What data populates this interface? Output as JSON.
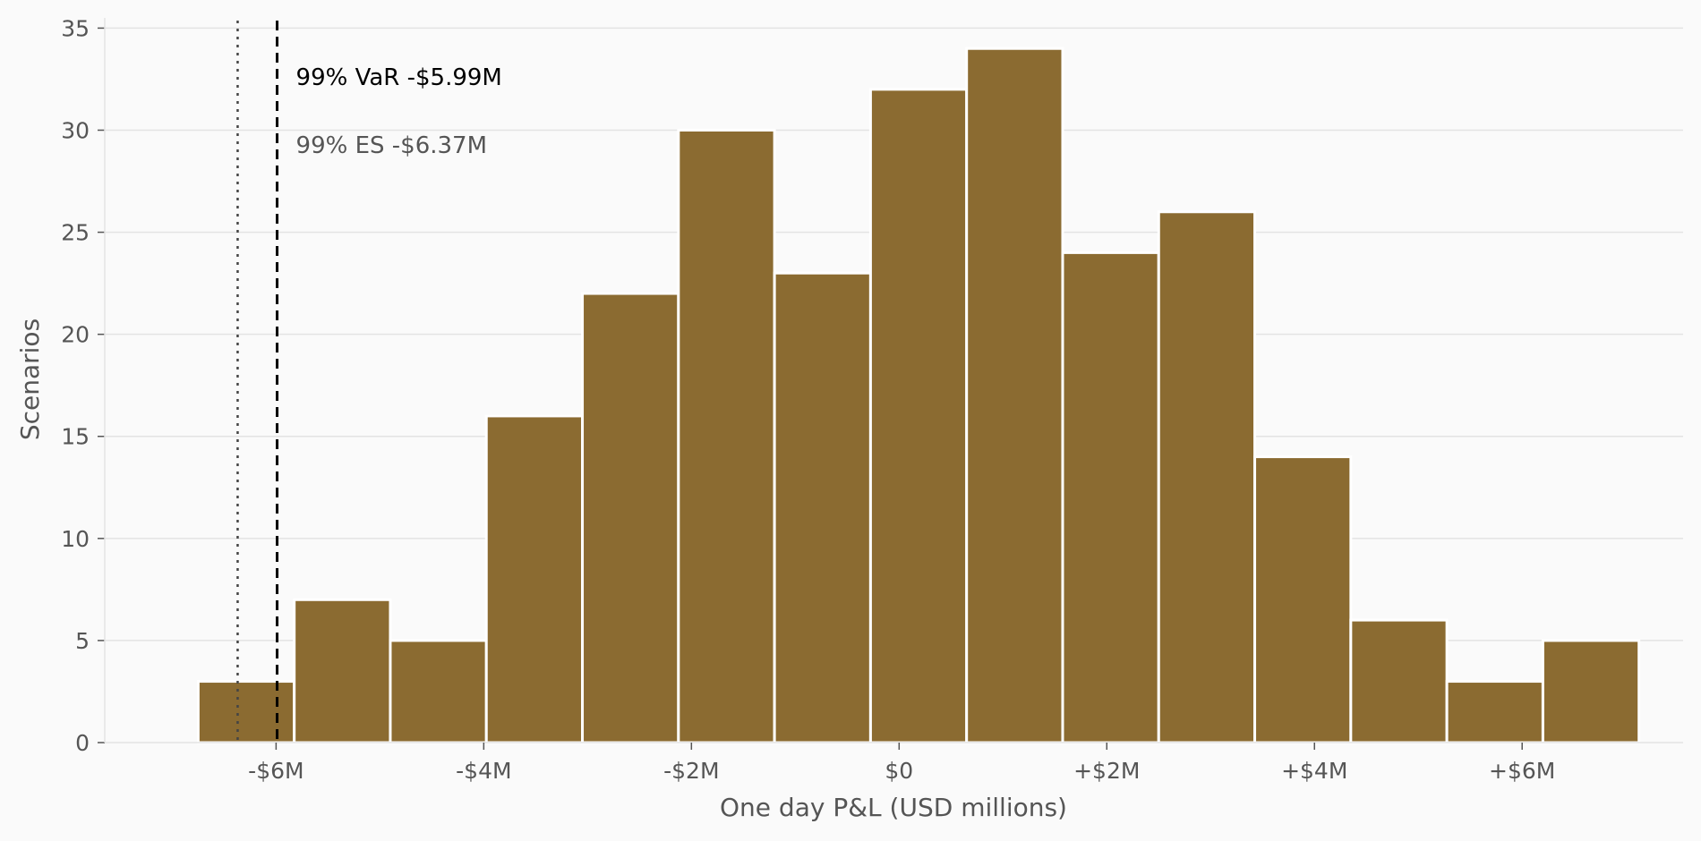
{
  "chart_data": {
    "type": "bar",
    "title": "",
    "xlabel": "One day P&L (USD millions)",
    "ylabel": "Scenarios",
    "bin_width": 0.925,
    "bins": [
      {
        "x_start": -6.75,
        "count": 3
      },
      {
        "x_start": -5.825,
        "count": 7
      },
      {
        "x_start": -4.9,
        "count": 5
      },
      {
        "x_start": -3.975,
        "count": 16
      },
      {
        "x_start": -3.05,
        "count": 22
      },
      {
        "x_start": -2.125,
        "count": 30
      },
      {
        "x_start": -1.2,
        "count": 23
      },
      {
        "x_start": -0.275,
        "count": 32
      },
      {
        "x_start": 0.65,
        "count": 34
      },
      {
        "x_start": 1.575,
        "count": 24
      },
      {
        "x_start": 2.5,
        "count": 26
      },
      {
        "x_start": 3.425,
        "count": 14
      },
      {
        "x_start": 4.35,
        "count": 6
      },
      {
        "x_start": 5.275,
        "count": 3
      },
      {
        "x_start": 6.2,
        "count": 5
      }
    ],
    "xlim": [
      -7.65,
      7.55
    ],
    "ylim": [
      0,
      35.5
    ],
    "x_ticks": [
      -6,
      -4,
      -2,
      0,
      2,
      4,
      6
    ],
    "x_tick_labels": [
      "-$6M",
      "-$4M",
      "-$2M",
      "$0",
      "+$2M",
      "+$4M",
      "+$6M"
    ],
    "y_ticks": [
      0,
      5,
      10,
      15,
      20,
      25,
      30,
      35
    ],
    "y_tick_labels": [
      "0",
      "5",
      "10",
      "15",
      "20",
      "25",
      "30",
      "35"
    ],
    "grid": "horizontal",
    "bar_color": "#8b6b31",
    "annotations": [
      {
        "name": "var-99",
        "label": "99% VaR  -$5.99M",
        "x": -5.99,
        "line_style": "dashed",
        "color": "#000000"
      },
      {
        "name": "es-99",
        "label": "99% ES  -$6.37M",
        "x": -6.37,
        "line_style": "dotted",
        "color": "#444444"
      }
    ]
  }
}
